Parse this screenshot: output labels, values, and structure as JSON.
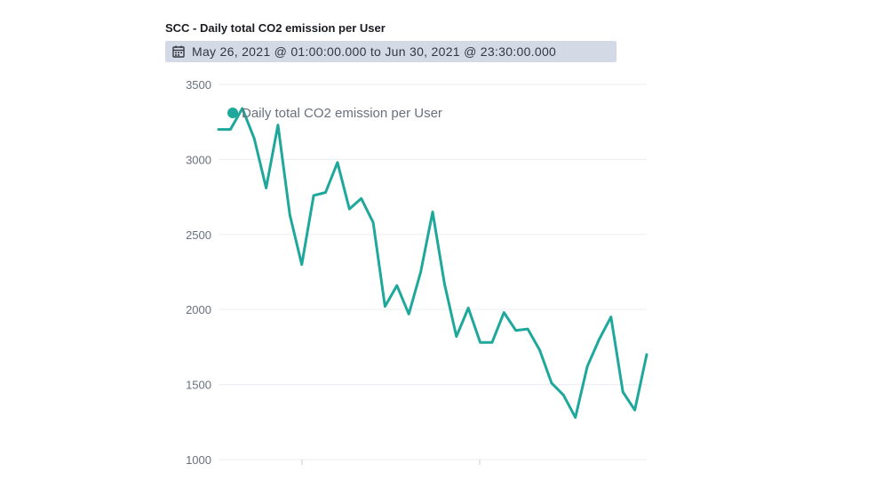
{
  "panel": {
    "title": "SCC - Daily total CO2 emission per User",
    "time_range": "May 26, 2021 @ 01:00:00.000 to Jun 30, 2021 @ 23:30:00.000",
    "calendar_icon": "calendar-icon"
  },
  "colors": {
    "series": "#1ea89b",
    "grid": "#eef0f3",
    "badge": "#d3dae6"
  },
  "chart_data": {
    "type": "line",
    "title": "SCC - Daily total CO2 emission per User",
    "xlabel": "",
    "ylabel": "",
    "ylim": [
      1000,
      3500
    ],
    "yticks": [
      1000,
      1500,
      2000,
      2500,
      3000,
      3500
    ],
    "grid": true,
    "legend_position": "top-left",
    "series": [
      {
        "name": "Daily total CO2 emission per User",
        "values": [
          3200,
          3200,
          3340,
          3140,
          2810,
          3230,
          2630,
          2300,
          2760,
          2780,
          2980,
          2670,
          2740,
          2580,
          2020,
          2160,
          1970,
          2250,
          2650,
          2170,
          1820,
          2010,
          1780,
          1780,
          1980,
          1860,
          1870,
          1730,
          1510,
          1430,
          1280,
          1620,
          1800,
          1950,
          1450,
          1330,
          1700
        ]
      }
    ]
  }
}
